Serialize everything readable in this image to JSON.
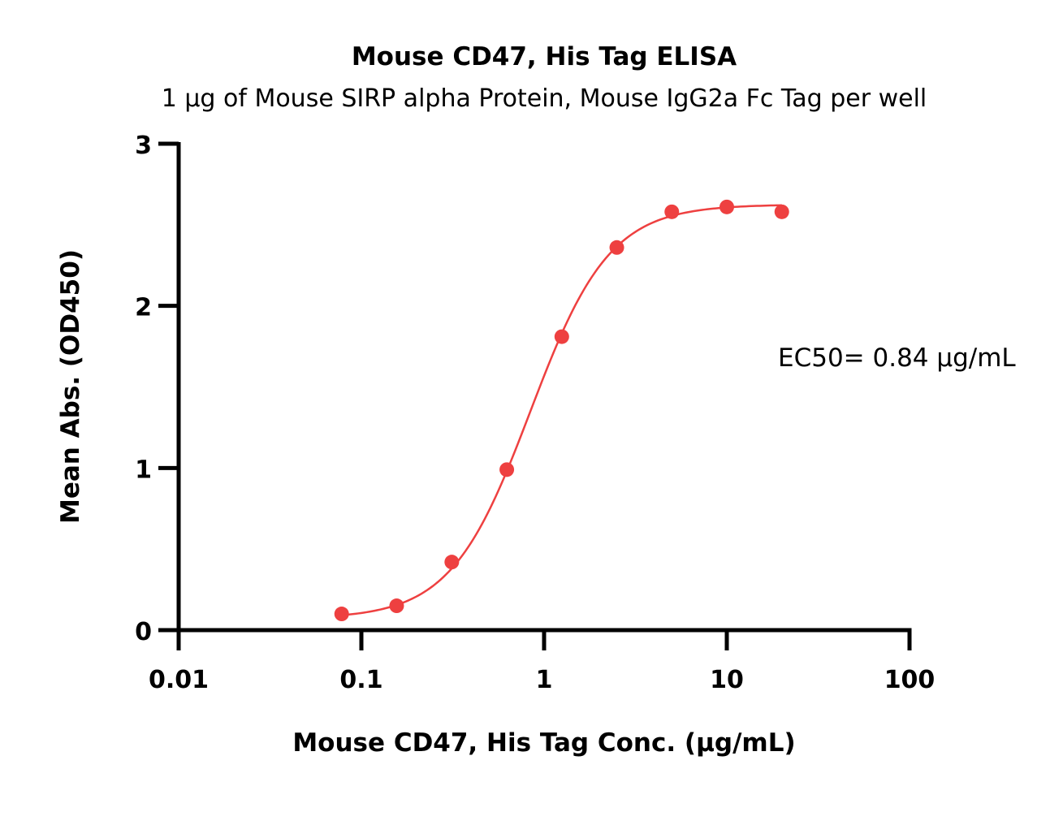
{
  "chart_data": {
    "type": "scatter",
    "title": "Mouse CD47, His Tag ELISA",
    "subtitle": "1 μg of Mouse SIRP alpha Protein, Mouse IgG2a Fc Tag per well",
    "xlabel": "Mouse CD47, His Tag Conc. (μg/mL)",
    "ylabel": "Mean Abs. (OD450)",
    "x_scale": "log",
    "xlim": [
      0.01,
      100
    ],
    "ylim": [
      0,
      3
    ],
    "x_ticks": [
      0.01,
      0.1,
      1,
      10,
      100
    ],
    "x_tick_labels": [
      "0.01",
      "0.1",
      "1",
      "10",
      "100"
    ],
    "y_ticks": [
      0,
      1,
      2,
      3
    ],
    "y_tick_labels": [
      "0",
      "1",
      "2",
      "3"
    ],
    "grid": false,
    "series": [
      {
        "x": [
          0.078,
          0.156,
          0.3125,
          0.625,
          1.25,
          2.5,
          5,
          10,
          20
        ],
        "y": [
          0.1,
          0.15,
          0.42,
          0.99,
          1.81,
          2.36,
          2.58,
          2.61,
          2.58
        ],
        "color": "#EE4040",
        "fit": "4PL"
      }
    ],
    "fit_params": {
      "bottom": 0.07,
      "top": 2.625,
      "ec50": 0.84,
      "hill": 2.0
    },
    "annotations": [
      {
        "text": "EC50= 0.84 μg/mL"
      }
    ]
  }
}
